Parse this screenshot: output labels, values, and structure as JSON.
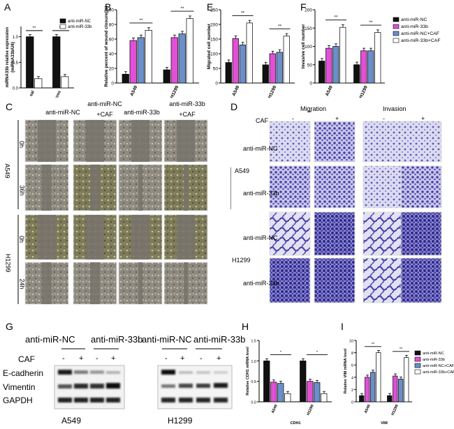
{
  "panels": {
    "A": "A",
    "B": "B",
    "E": "E",
    "F": "F",
    "C": "C",
    "D": "D",
    "G": "G",
    "H": "H",
    "I": "I"
  },
  "chart_data": [
    {
      "id": "A",
      "type": "bar",
      "ylabel": "miRNA33b relative expression\n(miRNA33b/U6)",
      "categories": [
        "sal",
        "ross"
      ],
      "series": [
        {
          "name": "anti-miR-NC",
          "color": "#111111",
          "values": [
            1.0,
            1.0
          ]
        },
        {
          "name": "anti-miR-33b",
          "color": "#ffffff",
          "values": [
            0.18,
            0.22
          ]
        }
      ],
      "ylim": [
        0,
        1.2
      ],
      "yticks": [
        0.0,
        0.5,
        1.0
      ],
      "sig": [
        "**",
        "**"
      ],
      "legend": [
        "anti-miR-NC",
        "anti-miR-33b"
      ]
    },
    {
      "id": "B",
      "type": "bar",
      "ylabel": "Relative percent of wound closure(%)",
      "categories": [
        "A549",
        "H1299"
      ],
      "series": [
        {
          "name": "anti-miR-NC",
          "values": [
            12,
            18
          ]
        },
        {
          "name": "anti-miR-33b",
          "values": [
            58,
            62
          ]
        },
        {
          "name": "anti-miR-NC+CAF",
          "values": [
            62,
            67
          ]
        },
        {
          "name": "anti-miR-33b+CAF",
          "values": [
            72,
            88
          ]
        }
      ],
      "ylim": [
        0,
        100
      ],
      "yticks": [
        0,
        20,
        40,
        60,
        80,
        100
      ],
      "sig": [
        "**"
      ]
    },
    {
      "id": "E",
      "type": "bar",
      "ylabel": "Migrated cell number",
      "categories": [
        "A549",
        "H1299"
      ],
      "series": [
        {
          "name": "anti-miR-NC",
          "values": [
            70,
            62
          ]
        },
        {
          "name": "anti-miR-33b",
          "values": [
            152,
            100
          ]
        },
        {
          "name": "anti-miR-NC+CAF",
          "values": [
            130,
            105
          ]
        },
        {
          "name": "anti-miR-33b+CAF",
          "values": [
            205,
            160
          ]
        }
      ],
      "ylim": [
        0,
        250
      ],
      "yticks": [
        0,
        50,
        100,
        150,
        200,
        250
      ],
      "sig": [
        "**",
        "**"
      ]
    },
    {
      "id": "F",
      "type": "bar",
      "ylabel": "Invasive cell number",
      "categories": [
        "A549",
        "H1299"
      ],
      "series": [
        {
          "name": "anti-miR-NC",
          "values": [
            60,
            50
          ]
        },
        {
          "name": "anti-miR-33b",
          "values": [
            95,
            88
          ]
        },
        {
          "name": "anti-miR-NC+CAF",
          "values": [
            100,
            88
          ]
        },
        {
          "name": "anti-miR-33b+CAF",
          "values": [
            152,
            138
          ]
        }
      ],
      "ylim": [
        0,
        200
      ],
      "yticks": [
        0,
        50,
        100,
        150,
        200
      ],
      "sig": [
        "**",
        "**"
      ],
      "legend": [
        "anti-miR-NC",
        "anti-miR-33b",
        "anti-miR-NC+CAF",
        "anti-miR-33b+CAF"
      ]
    },
    {
      "id": "H",
      "type": "bar",
      "ylabel": "Relative CDH1 mRNA level",
      "xlabel": "CDH1",
      "categories": [
        "A549",
        "H1299"
      ],
      "series": [
        {
          "name": "anti-miR-NC",
          "values": [
            1.0,
            1.0
          ]
        },
        {
          "name": "anti-miR-33b",
          "values": [
            0.48,
            0.5
          ]
        },
        {
          "name": "anti-miR-NC+CAF",
          "values": [
            0.45,
            0.47
          ]
        },
        {
          "name": "anti-miR-33b+CAF",
          "values": [
            0.2,
            0.2
          ]
        }
      ],
      "ylim": [
        0,
        1.5
      ],
      "yticks": [
        0.0,
        0.5,
        1.0,
        1.5
      ],
      "sig": [
        "*",
        "*"
      ]
    },
    {
      "id": "I",
      "type": "bar",
      "ylabel": "Relative VIM mRNA level",
      "xlabel": "VIM",
      "categories": [
        "A549",
        "H1299"
      ],
      "series": [
        {
          "name": "anti-miR-NC",
          "values": [
            1.0,
            1.0
          ]
        },
        {
          "name": "anti-miR-33b",
          "values": [
            4.0,
            4.2
          ]
        },
        {
          "name": "anti-miR-NC+CAF",
          "values": [
            4.8,
            3.7
          ]
        },
        {
          "name": "anti-miR-33b+CAF",
          "values": [
            8.0,
            7.2
          ]
        }
      ],
      "ylim": [
        0,
        10
      ],
      "yticks": [
        0,
        2,
        4,
        6,
        8,
        10
      ],
      "sig": [
        "**",
        "**"
      ],
      "legend": [
        "anti-miR-NC",
        "anti-miR-33b",
        "anti-miR-NC+CAF",
        "anti-miR-33b+CAF"
      ]
    }
  ],
  "colors": {
    "nc": "#111111",
    "m33b": "#e150d6",
    "nc_caf": "#6b8fc8",
    "m33b_caf": "#ffffff"
  },
  "panelC": {
    "cols": [
      "anti-miR-NC",
      "anti-miR-NC\n+CAF",
      "anti-miR-33b",
      "anti-miR-33b\n+CAF"
    ],
    "rows": [
      "0h",
      "36h",
      "0h",
      "24h"
    ],
    "groups": [
      "A549",
      "H1299"
    ]
  },
  "panelD": {
    "headers": [
      "Migration",
      "Invasion"
    ],
    "caf": "CAF",
    "signs": [
      "-",
      "+",
      "-",
      "+"
    ],
    "rows": [
      "anti-miR-NC",
      "anti-miR-33b",
      "anti-miR-NC",
      "anti-miR-33b"
    ],
    "groups": [
      "A549",
      "H1299"
    ]
  },
  "panelG": {
    "groups": [
      "anti-miR-NC",
      "anti-miR-33b",
      "anti-miR-NC",
      "anti-miR-33b"
    ],
    "caf": "CAF",
    "signs": [
      "-",
      "+",
      "-",
      "+"
    ],
    "rows": [
      "E-cadherin",
      "Vimentin",
      "GAPDH"
    ],
    "cells": [
      "A549",
      "H1299"
    ]
  }
}
